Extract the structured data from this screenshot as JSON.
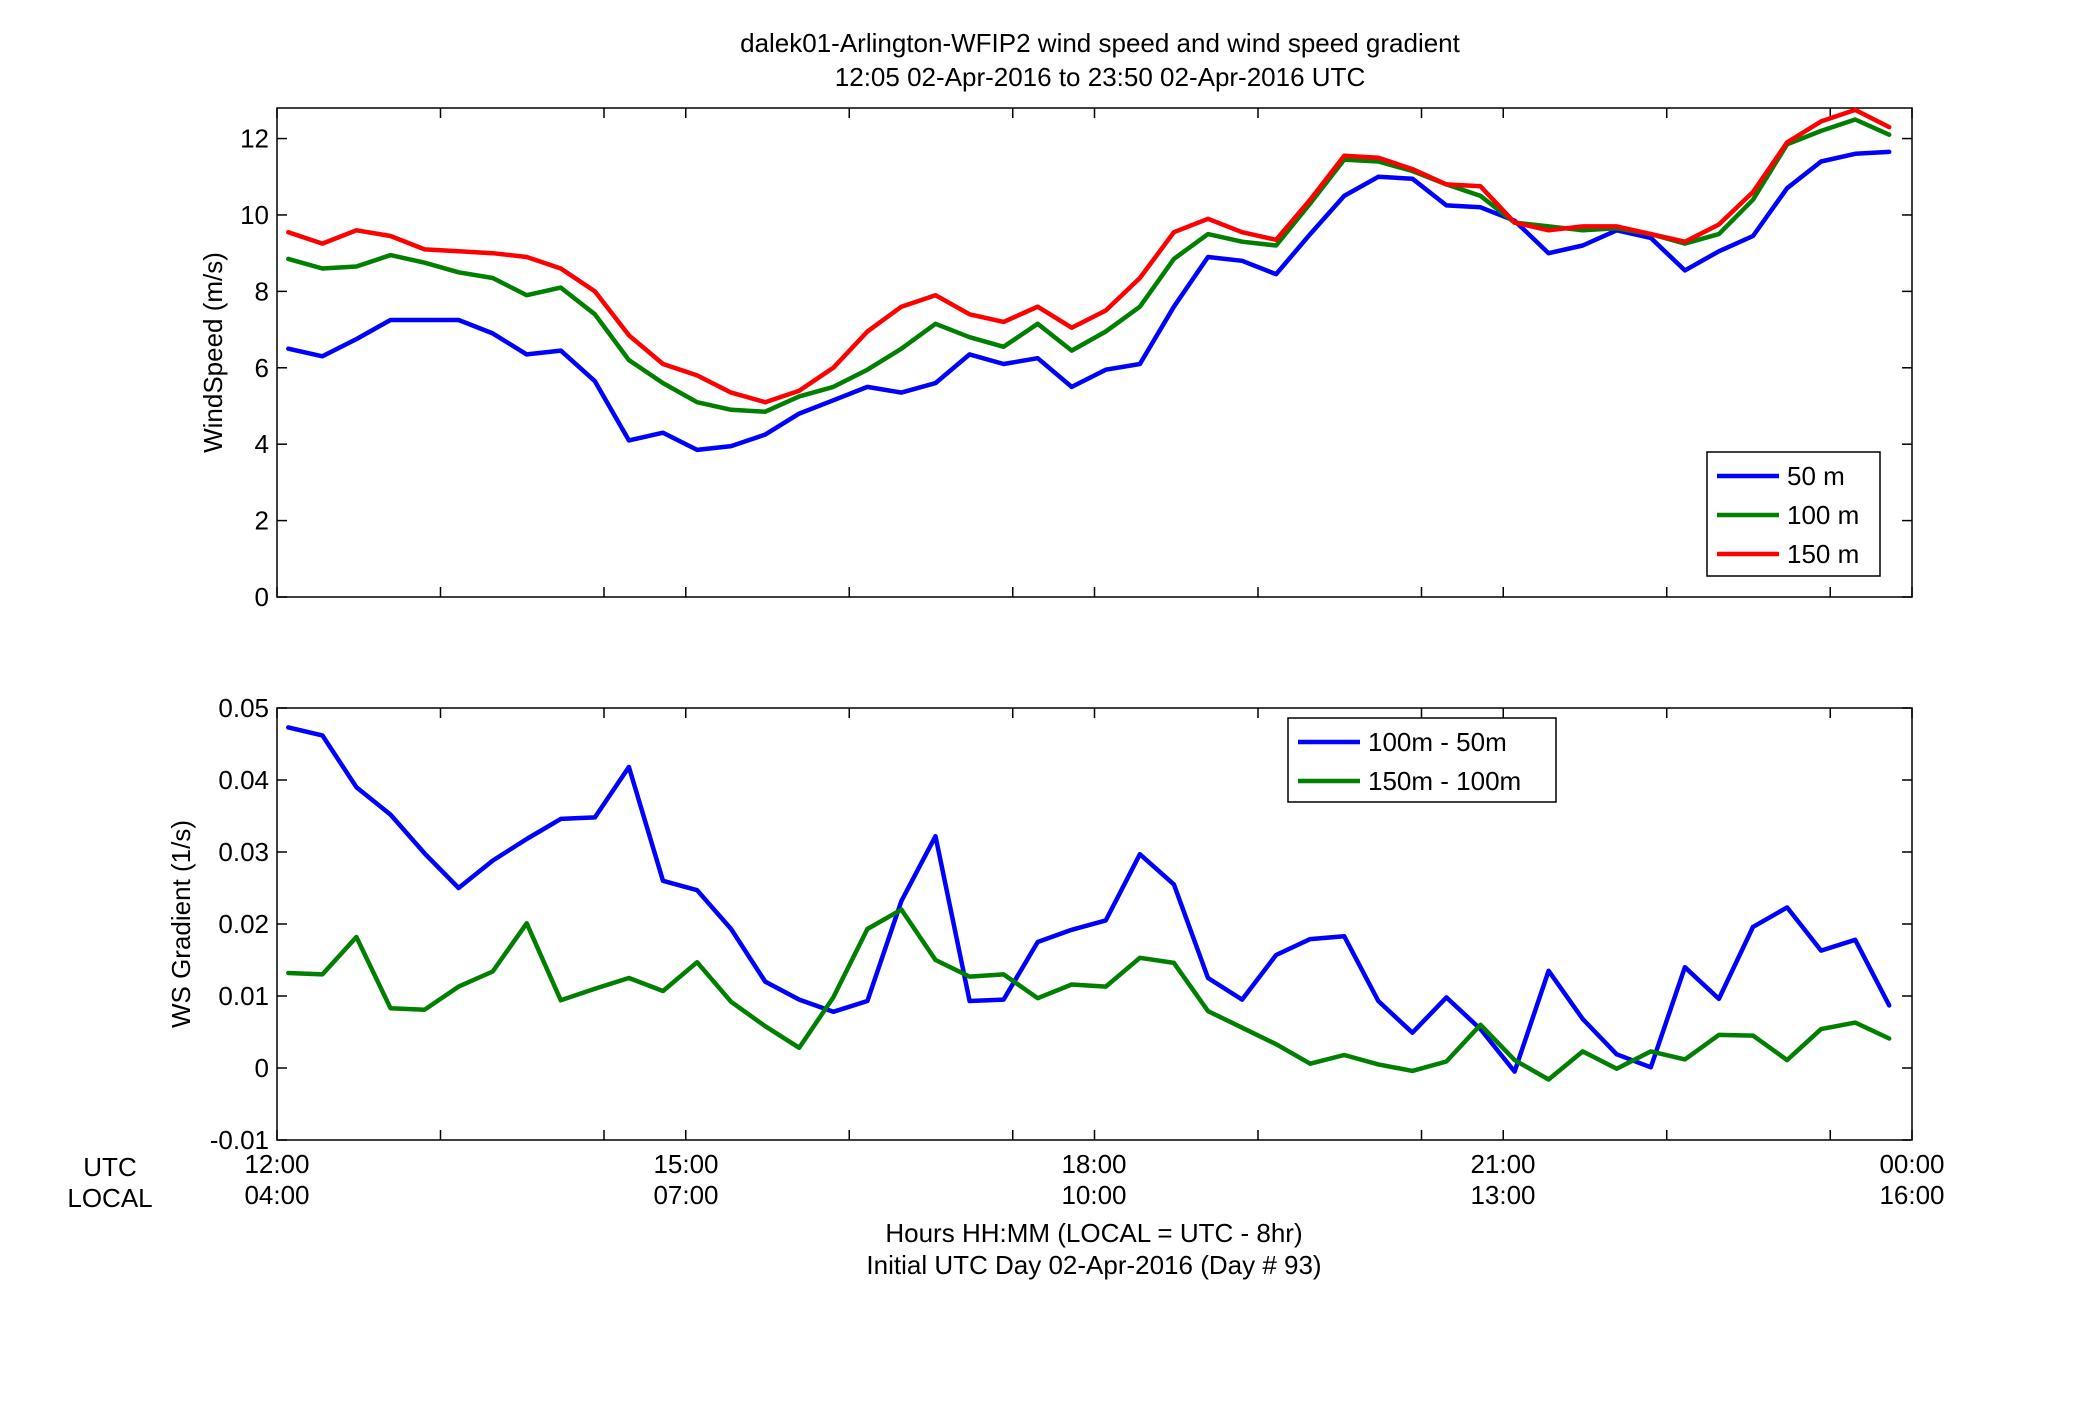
{
  "title_line1": "dalek01-Arlington-WFIP2  wind speed and wind speed gradient",
  "title_line2": "12:05 02-Apr-2016 to 23:50 02-Apr-2016  UTC",
  "xaxis": {
    "row_labels": [
      "UTC",
      "LOCAL"
    ],
    "utc_ticks": [
      "12:00",
      "15:00",
      "18:00",
      "21:00",
      "00:00"
    ],
    "local_ticks": [
      "04:00",
      "07:00",
      "10:00",
      "13:00",
      "16:00"
    ],
    "label_line1": "Hours HH:MM  (LOCAL = UTC - 8hr)",
    "label_line2": "Initial UTC Day 02-Apr-2016 (Day # 93)"
  },
  "colors": {
    "blue": "#0000ff",
    "green": "#007f00",
    "red": "#ff0000"
  },
  "chart_data": [
    {
      "type": "line",
      "ylabel": "WindSpeed (m/s)",
      "xlim": [
        12,
        24
      ],
      "ylim": [
        0,
        12.8
      ],
      "yticks": [
        0,
        2,
        4,
        6,
        8,
        10,
        12
      ],
      "ytick_labels": [
        "0",
        "2",
        "4",
        "6",
        "8",
        "10",
        "12"
      ],
      "xticks_hours": [
        12,
        13.2,
        14.4,
        15,
        16.2,
        17.4,
        18,
        19.2,
        20.4,
        21,
        22.2,
        23.4,
        24
      ],
      "legend_position": "bottom-right",
      "x_start_hour": 12.083,
      "x_step_hours": 0.25,
      "series": [
        {
          "name": "50 m",
          "color": "#0000ff",
          "values": [
            6.5,
            6.3,
            6.75,
            7.25,
            7.25,
            7.25,
            6.9,
            6.35,
            6.45,
            5.65,
            4.1,
            4.3,
            3.85,
            3.95,
            4.25,
            4.8,
            5.15,
            5.5,
            5.35,
            5.6,
            6.35,
            6.1,
            6.25,
            5.5,
            5.95,
            6.1,
            7.6,
            8.9,
            8.8,
            8.45,
            9.5,
            10.5,
            11.0,
            10.95,
            10.25,
            10.2,
            9.85,
            9.0,
            9.2,
            9.6,
            9.4,
            8.55,
            9.05,
            9.45,
            10.7,
            11.4,
            11.6,
            11.65
          ]
        },
        {
          "name": "100 m",
          "color": "#007f00",
          "values": [
            8.85,
            8.6,
            8.65,
            8.95,
            8.75,
            8.5,
            8.35,
            7.9,
            8.1,
            7.4,
            6.2,
            5.6,
            5.1,
            4.9,
            4.85,
            5.25,
            5.5,
            5.95,
            6.5,
            7.15,
            6.8,
            6.55,
            7.15,
            6.45,
            6.95,
            7.6,
            8.85,
            9.5,
            9.3,
            9.2,
            10.3,
            11.45,
            11.4,
            11.15,
            10.8,
            10.5,
            9.8,
            9.7,
            9.6,
            9.65,
            9.5,
            9.25,
            9.5,
            10.4,
            11.85,
            12.2,
            12.5,
            12.1
          ]
        },
        {
          "name": "150 m",
          "color": "#ff0000",
          "values": [
            9.55,
            9.25,
            9.6,
            9.45,
            9.1,
            9.05,
            9.0,
            8.9,
            8.6,
            8.0,
            6.85,
            6.1,
            5.8,
            5.35,
            5.1,
            5.4,
            6.0,
            6.95,
            7.6,
            7.9,
            7.4,
            7.2,
            7.6,
            7.05,
            7.5,
            8.35,
            9.55,
            9.9,
            9.55,
            9.35,
            10.4,
            11.55,
            11.5,
            11.2,
            10.8,
            10.75,
            9.8,
            9.6,
            9.7,
            9.7,
            9.5,
            9.3,
            9.75,
            10.6,
            11.9,
            12.45,
            12.75,
            12.3
          ]
        }
      ]
    },
    {
      "type": "line",
      "ylabel": "WS Gradient (1/s)",
      "xlim": [
        12,
        24
      ],
      "ylim": [
        -0.01,
        0.05
      ],
      "yticks": [
        -0.01,
        0,
        0.01,
        0.02,
        0.03,
        0.04,
        0.05
      ],
      "ytick_labels": [
        "-0.01",
        "0",
        "0.01",
        "0.02",
        "0.03",
        "0.04",
        "0.05"
      ],
      "xticks_hours": [
        12,
        13.2,
        14.4,
        15,
        16.2,
        17.4,
        18,
        19.2,
        20.4,
        21,
        22.2,
        23.4,
        24
      ],
      "legend_position": "top-center",
      "x_start_hour": 12.083,
      "x_step_hours": 0.25,
      "series": [
        {
          "name": "100m - 50m",
          "color": "#0000ff",
          "values": [
            0.0473,
            0.0462,
            0.039,
            0.0352,
            0.0298,
            0.025,
            0.0288,
            0.0318,
            0.0346,
            0.0348,
            0.0418,
            0.026,
            0.0247,
            0.0193,
            0.012,
            0.0095,
            0.0078,
            0.0093,
            0.0232,
            0.0322,
            0.0093,
            0.0095,
            0.0175,
            0.0192,
            0.0205,
            0.0297,
            0.0255,
            0.0125,
            0.0095,
            0.0157,
            0.0179,
            0.0183,
            0.0093,
            0.0049,
            0.0098,
            0.0054,
            -0.0005,
            0.0135,
            0.0068,
            0.0019,
            0.0001,
            0.014,
            0.0096,
            0.0196,
            0.0223,
            0.0163,
            0.0178,
            0.0087
          ]
        },
        {
          "name": "150m - 100m",
          "color": "#007f00",
          "values": [
            0.0132,
            0.013,
            0.0182,
            0.0083,
            0.0081,
            0.0113,
            0.0134,
            0.0201,
            0.0094,
            0.011,
            0.0125,
            0.0107,
            0.0147,
            0.0092,
            0.0058,
            0.0028,
            0.0098,
            0.0193,
            0.022,
            0.015,
            0.0127,
            0.013,
            0.0097,
            0.0116,
            0.0113,
            0.0153,
            0.0146,
            0.0079,
            0.0056,
            0.0033,
            0.0006,
            0.0018,
            0.0005,
            -0.0004,
            0.0009,
            0.006,
            0.0011,
            -0.0016,
            0.0023,
            -0.0001,
            0.0023,
            0.0012,
            0.0046,
            0.0045,
            0.0011,
            0.0054,
            0.0063,
            0.0041
          ]
        }
      ]
    }
  ]
}
